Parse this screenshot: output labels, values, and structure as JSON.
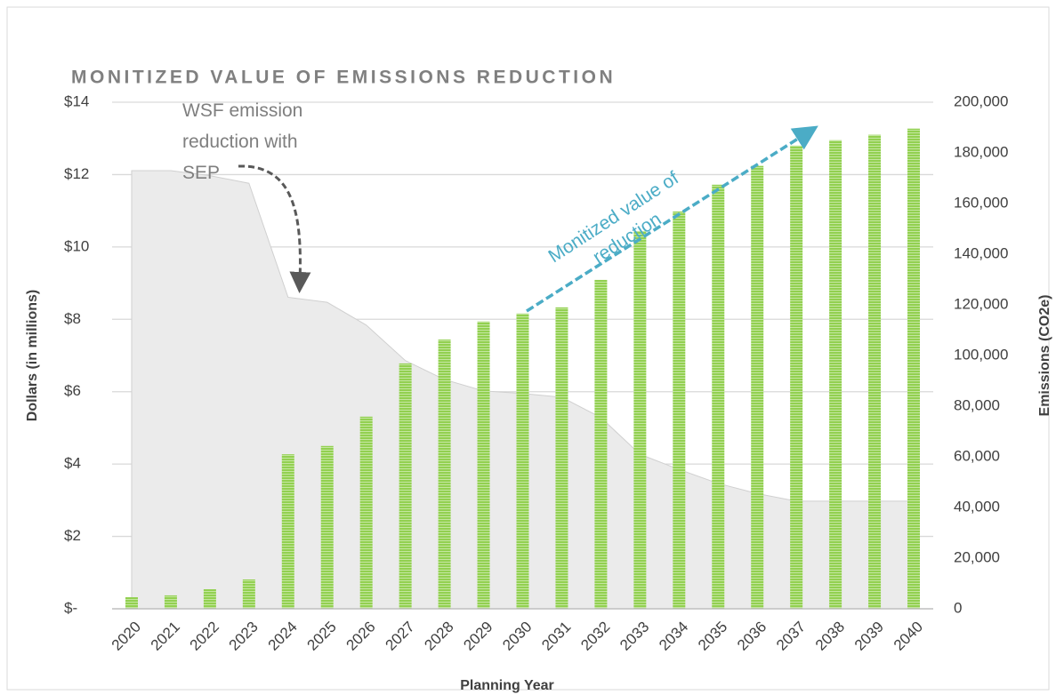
{
  "chart_data": {
    "type": "combo",
    "title": "MONITIZED VALUE OF EMISSIONS REDUCTION",
    "x_label": "Planning Year",
    "y_label": "Dollars (in millions)",
    "y2_label": "Emissions (CO2e)",
    "categories": [
      "2020",
      "2021",
      "2022",
      "2023",
      "2024",
      "2025",
      "2026",
      "2027",
      "2028",
      "2029",
      "2030",
      "2031",
      "2032",
      "2033",
      "2034",
      "2035",
      "2036",
      "2037",
      "2038",
      "2039",
      "2040"
    ],
    "series": [
      {
        "name": "Monitized value",
        "type": "bar",
        "color": "#92d050",
        "values": [
          0.32,
          0.37,
          0.54,
          0.81,
          4.27,
          4.5,
          5.31,
          6.78,
          7.44,
          7.94,
          8.16,
          8.33,
          9.09,
          10.44,
          10.98,
          11.72,
          12.24,
          12.8,
          12.95,
          13.1,
          13.27
        ]
      },
      {
        "name": "Emissions",
        "type": "area",
        "axis": "y2",
        "color": "#ebebeb",
        "values": [
          173000,
          173000,
          171000,
          168000,
          123000,
          121000,
          112000,
          98000,
          90500,
          86000,
          85000,
          83500,
          75500,
          61000,
          55000,
          49500,
          45500,
          42500,
          42500,
          42500,
          42500
        ]
      }
    ],
    "ylim": [
      0,
      14
    ],
    "yticks": [
      {
        "value": 0,
        "label": "$-"
      },
      {
        "value": 2,
        "label": "$2"
      },
      {
        "value": 4,
        "label": "$4"
      },
      {
        "value": 6,
        "label": "$6"
      },
      {
        "value": 8,
        "label": "$8"
      },
      {
        "value": 10,
        "label": "$10"
      },
      {
        "value": 12,
        "label": "$12"
      },
      {
        "value": 14,
        "label": "$14"
      }
    ],
    "y2lim": [
      0,
      200000
    ],
    "y2ticks": [
      0,
      {
        "value": 20000,
        "label": "20,000"
      },
      {
        "value": 40000,
        "label": "40,000"
      },
      {
        "value": 60000,
        "label": "60,000"
      },
      {
        "value": 80000,
        "label": "80,000"
      },
      {
        "value": 100000,
        "label": "100,000"
      },
      {
        "value": 120000,
        "label": "120,000"
      },
      {
        "value": 140000,
        "label": "140,000"
      },
      {
        "value": 160000,
        "label": "160,000"
      },
      {
        "value": 180000,
        "label": "180,000"
      },
      {
        "value": 200000,
        "label": "200,000"
      }
    ],
    "grid": true,
    "annotations": [
      {
        "lines": [
          "WSF emission",
          "reduction with",
          "SEP"
        ]
      },
      {
        "lines": [
          "Monitized value of",
          "reduction"
        ]
      }
    ]
  }
}
